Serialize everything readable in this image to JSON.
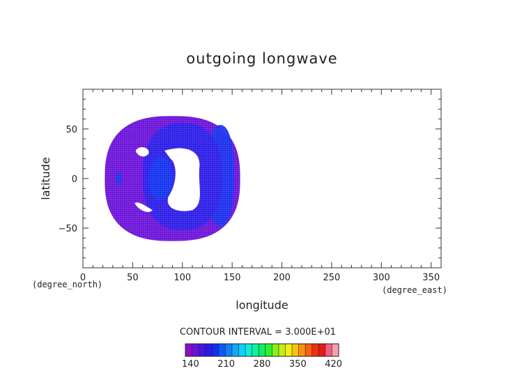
{
  "chart_data": {
    "type": "heatmap",
    "title": "outgoing longwave",
    "xlabel": "longitude",
    "ylabel": "latitude",
    "x_unit": "(degree_east)",
    "y_unit": "(degree_north)",
    "xlim": [
      0,
      360
    ],
    "ylim": [
      -90,
      90
    ],
    "x_ticks": [
      0,
      50,
      100,
      150,
      200,
      250,
      300,
      350
    ],
    "y_ticks": [
      -50,
      0,
      50
    ],
    "grid": false,
    "contour_interval_text": "CONTOUR INTERVAL = 3.000E+01",
    "colorbar": {
      "min": 130,
      "max": 430,
      "tick_values": [
        140,
        210,
        280,
        350,
        420
      ],
      "colors": [
        "#8a0dc8",
        "#6a10d8",
        "#4a14e4",
        "#2a1ae8",
        "#1030f0",
        "#1058f6",
        "#1080fa",
        "#10a8fb",
        "#10d0f8",
        "#10ecd8",
        "#10f0a0",
        "#10f060",
        "#30f030",
        "#80f020",
        "#c0f010",
        "#f0f010",
        "#f8c010",
        "#f89010",
        "#f86010",
        "#f03010",
        "#e81818",
        "#f06080",
        "#f8a0b0"
      ]
    },
    "field": {
      "region_bounds": {
        "lon": [
          22,
          158
        ],
        "lat": [
          -63,
          63
        ]
      },
      "regions": [
        {
          "name": "outer",
          "value": 145
        },
        {
          "name": "east_band",
          "value": 195
        },
        {
          "name": "inner_west",
          "value": 175
        },
        {
          "name": "center_core",
          "value": 195
        },
        {
          "name": "west_spot",
          "value": 190
        }
      ],
      "missing_regions": [
        "central",
        "upper_left",
        "lower_left"
      ]
    }
  }
}
